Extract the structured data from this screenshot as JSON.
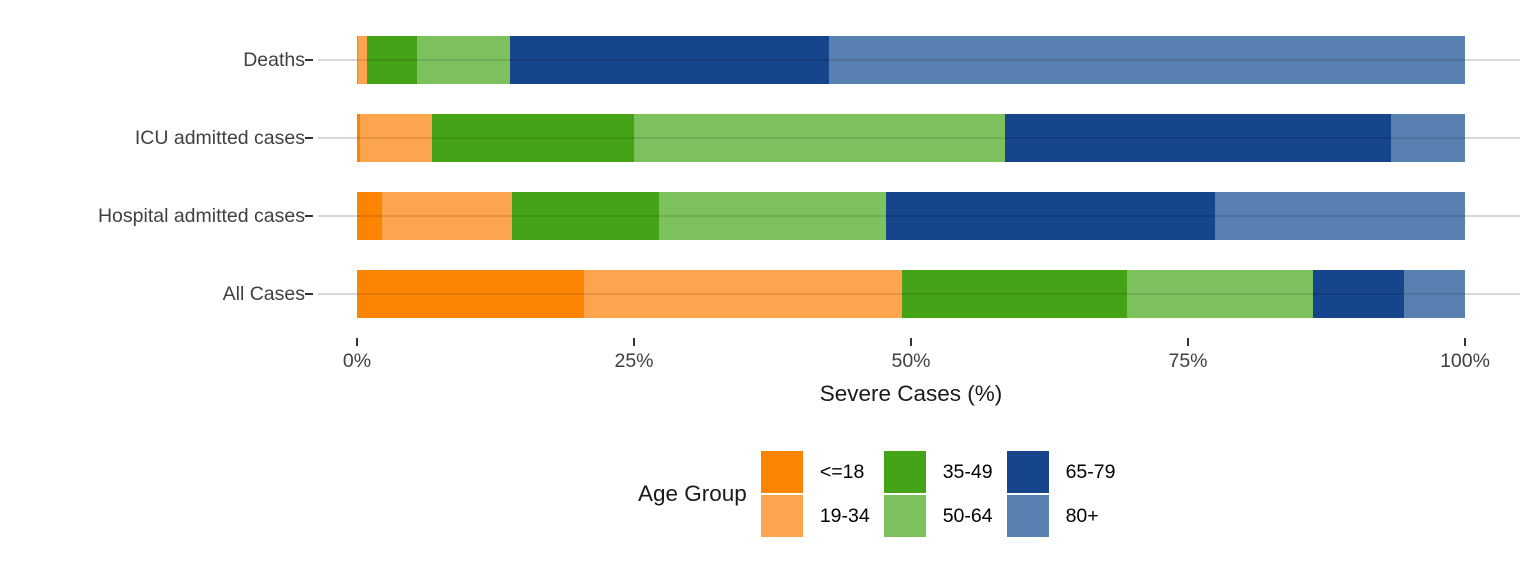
{
  "chart_data": {
    "type": "bar",
    "orientation": "horizontal",
    "stacked": true,
    "unit": "percent",
    "title": "",
    "xlabel": "Severe Cases (%)",
    "ylabel": "",
    "xlim": [
      0,
      100
    ],
    "grid": "horizontal-major",
    "categories": [
      "Deaths",
      "ICU admitted cases",
      "Hospital admitted cases",
      "All Cases"
    ],
    "x_ticks": [
      {
        "value": 0,
        "label": "0%"
      },
      {
        "value": 25,
        "label": "25%"
      },
      {
        "value": 50,
        "label": "50%"
      },
      {
        "value": 75,
        "label": "75%"
      },
      {
        "value": 100,
        "label": "100%"
      }
    ],
    "series": [
      {
        "name": "<=18",
        "color": "#FB8500",
        "values": [
          0.1,
          0.3,
          2.3,
          20.5
        ]
      },
      {
        "name": "19-34",
        "color": "#FCA44E",
        "values": [
          0.8,
          6.5,
          11.7,
          28.7
        ]
      },
      {
        "name": "35-49",
        "color": "#44A317",
        "values": [
          4.5,
          18.2,
          13.3,
          20.3
        ]
      },
      {
        "name": "50-64",
        "color": "#7CC15D",
        "values": [
          8.4,
          33.5,
          20.4,
          16.8
        ]
      },
      {
        "name": "65-79",
        "color": "#17458B",
        "values": [
          28.8,
          34.8,
          29.7,
          8.2
        ]
      },
      {
        "name": "80+",
        "color": "#5880B0",
        "values": [
          57.4,
          6.7,
          22.6,
          5.5
        ]
      }
    ],
    "legend": {
      "title": "Age Group",
      "position": "bottom",
      "rows": 2,
      "entries": [
        "<=18",
        "19-34",
        "35-49",
        "50-64",
        "65-79",
        "80+"
      ]
    },
    "style_colors": {
      "gridline": "#d8d8d8",
      "tick": "#333333",
      "axis_text": "#404040",
      "title_text": "#1a1a1a"
    }
  }
}
